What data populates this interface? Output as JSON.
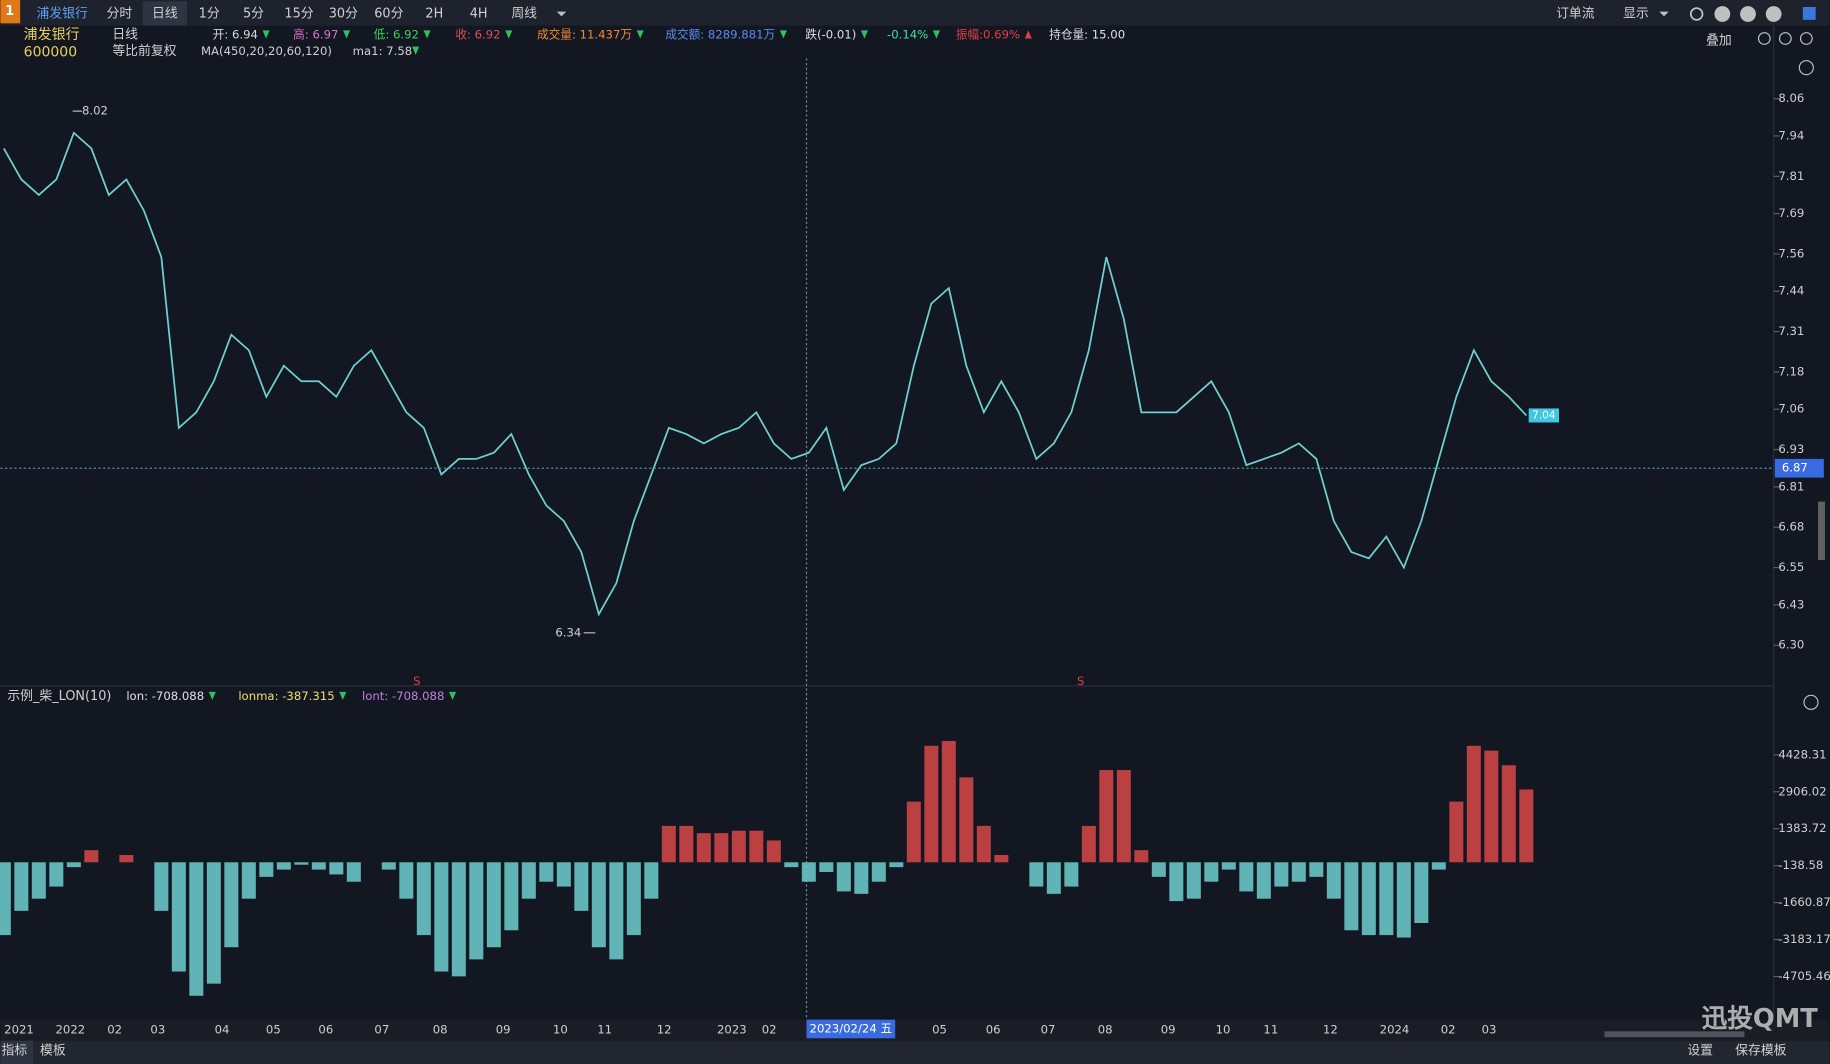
{
  "toolbar": {
    "logo": "1",
    "tabs": [
      "浦发银行",
      "分时",
      "日线",
      "1分",
      "5分",
      "15分",
      "30分",
      "60分",
      "2H",
      "4H",
      "周线"
    ],
    "active": 2,
    "right": [
      "订单流",
      "显示"
    ]
  },
  "info": {
    "name": "浦发银行",
    "code": "600000",
    "period": "日线",
    "adjust": "等比前复权",
    "ma": "MA(450,20,20,60,120)",
    "ma1": "ma1: 7.58",
    "fields": [
      {
        "text": "开: 6.94",
        "color": "#d8d8d8",
        "arrow": "down"
      },
      {
        "text": "高: 6.97",
        "color": "#e070d0",
        "arrow": "down"
      },
      {
        "text": "低: 6.92",
        "color": "#40d060",
        "arrow": "down"
      },
      {
        "text": "收: 6.92",
        "color": "#e05050",
        "arrow": "down"
      },
      {
        "text": "成交量: 11.437万",
        "color": "#f08a30",
        "arrow": "down"
      },
      {
        "text": "成交额: 8289.881万",
        "color": "#5a8cf0",
        "arrow": "down"
      },
      {
        "text": "跌(-0.01)",
        "color": "#e0e0e0",
        "arrow": "down"
      },
      {
        "text": "-0.14%",
        "color": "#40e0a0",
        "arrow": "down"
      },
      {
        "text": "振幅:0.69%",
        "color": "#e04040",
        "arrow": "up"
      },
      {
        "text": "持仓量: 15.00",
        "color": "#e0e0e0",
        "arrow": null
      }
    ]
  },
  "overlay_label": "叠加",
  "chart_data": [
    {
      "type": "line",
      "color": "#6fd0d0",
      "ylim": [
        6.18,
        8.19
      ],
      "yticks": [
        8.06,
        7.94,
        7.81,
        7.69,
        7.56,
        7.44,
        7.31,
        7.18,
        7.06,
        6.93,
        6.81,
        6.68,
        6.55,
        6.43,
        {
          "value": 6.3,
          "label": "6.30"
        }
      ],
      "values": [
        7.9,
        7.8,
        7.75,
        7.8,
        7.95,
        7.9,
        7.75,
        7.8,
        7.7,
        7.55,
        7.0,
        7.05,
        7.15,
        7.3,
        7.25,
        7.1,
        7.2,
        7.15,
        7.15,
        7.1,
        7.2,
        7.25,
        7.15,
        7.05,
        7.0,
        6.85,
        6.9,
        6.9,
        6.92,
        6.98,
        6.85,
        6.75,
        6.7,
        6.6,
        6.4,
        6.5,
        6.7,
        6.85,
        7.0,
        6.98,
        6.95,
        6.98,
        7.0,
        7.05,
        6.95,
        6.9,
        6.92,
        7.0,
        6.8,
        6.88,
        6.9,
        6.95,
        7.2,
        7.4,
        7.45,
        7.2,
        7.05,
        7.15,
        7.05,
        6.9,
        6.95,
        7.05,
        7.25,
        7.55,
        7.35,
        7.05,
        7.05,
        7.05,
        7.1,
        7.15,
        7.05,
        6.88,
        6.9,
        6.92,
        6.95,
        6.9,
        6.7,
        6.6,
        6.58,
        6.65,
        6.55,
        6.7,
        6.9,
        7.1,
        7.25,
        7.15,
        7.1,
        7.04
      ],
      "high": 8.02,
      "low": 6.34,
      "last": 7.04,
      "crosshair": 6.87,
      "signals": [
        "S",
        "S"
      ]
    },
    {
      "type": "bar",
      "title": "示例_柴_LON(10)",
      "legend": [
        {
          "text": "lon: -708.088",
          "color": "#e0e0e0"
        },
        {
          "text": "lonma: -387.315",
          "color": "#e8e070"
        },
        {
          "text": "lont: -708.088",
          "color": "#c080e0"
        }
      ],
      "up_color": "#d84848",
      "down_color": "#70d0d0",
      "ylim": [
        -6436,
        5966
      ],
      "yticks": [
        4428.31,
        2906.02,
        1383.72,
        -138.58,
        -1660.87,
        -3183.17,
        -4705.46
      ],
      "values": [
        -3000,
        -2000,
        -1500,
        -1000,
        -200,
        500,
        0,
        300,
        0,
        -2000,
        -4500,
        -5500,
        -5000,
        -3500,
        -1500,
        -600,
        -300,
        -100,
        -300,
        -500,
        -800,
        0,
        -300,
        -1500,
        -3000,
        -4500,
        -4700,
        -4000,
        -3500,
        -2800,
        -1500,
        -800,
        -1000,
        -2000,
        -3500,
        -4000,
        -3000,
        -1500,
        1500,
        1500,
        1200,
        1200,
        1300,
        1300,
        900,
        -200,
        -800,
        -400,
        -1200,
        -1300,
        -800,
        -200,
        2500,
        4800,
        5000,
        3500,
        1500,
        300,
        0,
        -1000,
        -1300,
        -1000,
        1500,
        3800,
        3800,
        500,
        -600,
        -1600,
        -1500,
        -800,
        -300,
        -1200,
        -1500,
        -1000,
        -800,
        -600,
        -1500,
        -2800,
        -3000,
        -3000,
        -3100,
        -2500,
        -300,
        2500,
        4800,
        4600,
        4000,
        3000
      ]
    }
  ],
  "x_labels": [
    "2021",
    "2022",
    "02",
    "03",
    "04",
    "05",
    "06",
    "07",
    "08",
    "09",
    "10",
    "11",
    "12",
    "2023",
    "02",
    "05",
    "06",
    "07",
    "08",
    "09",
    "10",
    "11",
    "12",
    "2024",
    "02",
    "03"
  ],
  "crosshair_date": "2023/02/24 五",
  "bottom": {
    "left": [
      "指标",
      "模板"
    ],
    "right": [
      "设置",
      "保存模板"
    ]
  },
  "watermark": "迅投QMT"
}
